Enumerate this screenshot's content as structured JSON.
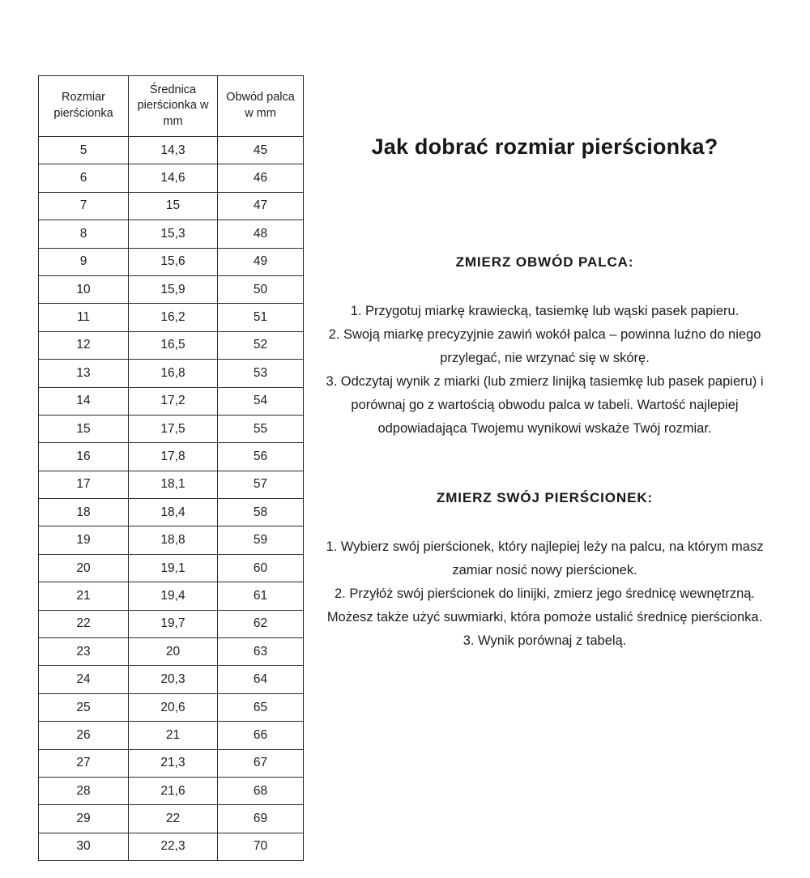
{
  "page": {
    "title": "Jak dobrać rozmiar pierścionka?"
  },
  "table": {
    "headers": [
      "Rozmiar pierścionka",
      "Średnica pierścionka w mm",
      "Obwód palca w mm"
    ],
    "rows": [
      [
        "5",
        "14,3",
        "45"
      ],
      [
        "6",
        "14,6",
        "46"
      ],
      [
        "7",
        "15",
        "47"
      ],
      [
        "8",
        "15,3",
        "48"
      ],
      [
        "9",
        "15,6",
        "49"
      ],
      [
        "10",
        "15,9",
        "50"
      ],
      [
        "11",
        "16,2",
        "51"
      ],
      [
        "12",
        "16,5",
        "52"
      ],
      [
        "13",
        "16,8",
        "53"
      ],
      [
        "14",
        "17,2",
        "54"
      ],
      [
        "15",
        "17,5",
        "55"
      ],
      [
        "16",
        "17,8",
        "56"
      ],
      [
        "17",
        "18,1",
        "57"
      ],
      [
        "18",
        "18,4",
        "58"
      ],
      [
        "19",
        "18,8",
        "59"
      ],
      [
        "20",
        "19,1",
        "60"
      ],
      [
        "21",
        "19,4",
        "61"
      ],
      [
        "22",
        "19,7",
        "62"
      ],
      [
        "23",
        "20",
        "63"
      ],
      [
        "24",
        "20,3",
        "64"
      ],
      [
        "25",
        "20,6",
        "65"
      ],
      [
        "26",
        "21",
        "66"
      ],
      [
        "27",
        "21,3",
        "67"
      ],
      [
        "28",
        "21,6",
        "68"
      ],
      [
        "29",
        "22",
        "69"
      ],
      [
        "30",
        "22,3",
        "70"
      ]
    ]
  },
  "sections": [
    {
      "heading": "ZMIERZ OBWÓD PALCA:",
      "items": [
        "1. Przygotuj miarkę krawiecką, tasiemkę lub wąski pasek papieru.",
        "2. Swoją miarkę precyzyjnie zawiń wokół palca – powinna luźno do niego przylegać, nie wrzynać się w skórę.",
        "3. Odczytaj wynik z miarki (lub zmierz linijką tasiemkę lub pasek papieru) i porównaj go z wartością obwodu palca w tabeli. Wartość najlepiej odpowiadająca Twojemu wynikowi wskaże Twój rozmiar."
      ]
    },
    {
      "heading": "ZMIERZ SWÓJ PIERŚCIONEK:",
      "items": [
        "1. Wybierz swój pierścionek, który najlepiej leży na palcu, na którym masz zamiar nosić nowy pierścionek.",
        "2. Przyłóż swój pierścionek do linijki, zmierz jego średnicę wewnętrzną. Możesz także użyć suwmiarki, która pomoże ustalić średnicę pierścionka.",
        "3. Wynik porównaj z tabelą."
      ]
    }
  ]
}
